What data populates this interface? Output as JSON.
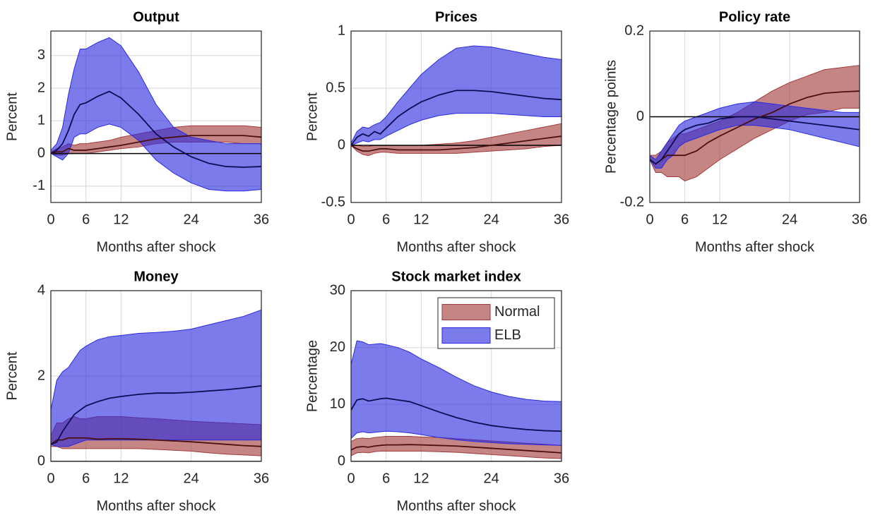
{
  "chart_data": [
    {
      "type": "line",
      "title": "Output",
      "xlabel": "Months after shock",
      "ylabel": "Percent",
      "x": [
        0,
        1,
        2,
        3,
        4,
        5,
        6,
        8,
        10,
        12,
        15,
        18,
        21,
        24,
        27,
        30,
        33,
        36
      ],
      "xlim": [
        0,
        36
      ],
      "xticks": [
        0,
        6,
        12,
        24,
        36
      ],
      "ylim": [
        -1.5,
        3.75
      ],
      "yticks": [
        -1,
        0,
        1,
        2,
        3
      ],
      "grid": true,
      "hline": 0,
      "series": [
        {
          "color": "#a33a3a",
          "line_color": "#4a1010",
          "values": [
            0,
            0.05,
            0.05,
            0.15,
            0.1,
            0.1,
            0.1,
            0.15,
            0.2,
            0.25,
            0.35,
            0.45,
            0.5,
            0.55,
            0.55,
            0.55,
            0.55,
            0.5
          ],
          "lower": [
            0,
            -0.05,
            -0.05,
            0,
            0,
            0,
            0,
            0.05,
            0.1,
            0.15,
            0.2,
            0.3,
            0.35,
            0.35,
            0.35,
            0.35,
            0.3,
            0.3
          ],
          "upper": [
            0.05,
            0.15,
            0.2,
            0.3,
            0.25,
            0.3,
            0.3,
            0.35,
            0.4,
            0.5,
            0.6,
            0.7,
            0.8,
            0.85,
            0.85,
            0.85,
            0.85,
            0.8
          ]
        },
        {
          "color": "#2a2ae0",
          "line_color": "#0d0d55",
          "values": [
            0,
            0.1,
            0.3,
            0.7,
            1.2,
            1.5,
            1.55,
            1.75,
            1.9,
            1.7,
            1.2,
            0.6,
            0.2,
            -0.1,
            -0.3,
            -0.4,
            -0.42,
            -0.4
          ],
          "lower": [
            0,
            -0.1,
            -0.2,
            0,
            0.5,
            0.6,
            0.6,
            0.8,
            0.9,
            0.8,
            0.4,
            -0.2,
            -0.6,
            -0.9,
            -1.1,
            -1.15,
            -1.15,
            -1.1
          ],
          "upper": [
            0.1,
            0.3,
            0.8,
            1.8,
            2.6,
            3.2,
            3.2,
            3.4,
            3.55,
            3.3,
            2.5,
            1.5,
            0.8,
            0.5,
            0.4,
            0.3,
            0.3,
            0.3
          ]
        }
      ]
    },
    {
      "type": "line",
      "title": "Prices",
      "xlabel": "Months after shock",
      "ylabel": "Percent",
      "x": [
        0,
        1,
        2,
        3,
        4,
        5,
        6,
        8,
        10,
        12,
        15,
        18,
        21,
        24,
        27,
        30,
        33,
        36
      ],
      "xlim": [
        0,
        36
      ],
      "xticks": [
        0,
        6,
        12,
        24,
        36
      ],
      "ylim": [
        -0.5,
        1
      ],
      "yticks": [
        -0.5,
        0,
        0.5,
        1
      ],
      "grid": true,
      "hline": 0,
      "series": [
        {
          "color": "#a33a3a",
          "line_color": "#4a1010",
          "values": [
            0,
            -0.03,
            -0.05,
            -0.05,
            -0.04,
            -0.03,
            -0.03,
            -0.04,
            -0.04,
            -0.04,
            -0.04,
            -0.03,
            -0.02,
            0,
            0.02,
            0.04,
            0.06,
            0.08
          ],
          "lower": [
            0,
            -0.05,
            -0.08,
            -0.09,
            -0.07,
            -0.06,
            -0.06,
            -0.07,
            -0.07,
            -0.07,
            -0.07,
            -0.07,
            -0.06,
            -0.05,
            -0.04,
            -0.03,
            -0.01,
            0
          ],
          "upper": [
            0.01,
            0,
            -0.01,
            -0.01,
            0,
            0,
            0,
            0,
            0,
            0,
            0.01,
            0.02,
            0.04,
            0.07,
            0.1,
            0.13,
            0.16,
            0.19
          ]
        },
        {
          "color": "#2a2ae0",
          "line_color": "#0d0d55",
          "values": [
            0,
            0.07,
            0.1,
            0.08,
            0.12,
            0.1,
            0.15,
            0.25,
            0.32,
            0.38,
            0.44,
            0.48,
            0.48,
            0.47,
            0.45,
            0.43,
            0.41,
            0.4
          ],
          "lower": [
            0,
            0.02,
            0.04,
            0.03,
            0.05,
            0.05,
            0.08,
            0.13,
            0.18,
            0.22,
            0.26,
            0.28,
            0.28,
            0.28,
            0.27,
            0.26,
            0.25,
            0.25
          ],
          "upper": [
            0.02,
            0.12,
            0.16,
            0.15,
            0.18,
            0.2,
            0.25,
            0.38,
            0.5,
            0.62,
            0.75,
            0.85,
            0.87,
            0.86,
            0.83,
            0.8,
            0.77,
            0.75
          ]
        }
      ]
    },
    {
      "type": "line",
      "title": "Policy rate",
      "xlabel": "Months after shock",
      "ylabel": "Percentage points",
      "x": [
        0,
        1,
        2,
        3,
        4,
        5,
        6,
        8,
        10,
        12,
        15,
        18,
        21,
        24,
        27,
        30,
        33,
        36
      ],
      "xlim": [
        0,
        36
      ],
      "xticks": [
        0,
        6,
        12,
        24,
        36
      ],
      "ylim": [
        -0.2,
        0.2
      ],
      "yticks": [
        -0.2,
        0,
        0.2
      ],
      "grid": true,
      "hline": 0,
      "series": [
        {
          "color": "#a33a3a",
          "line_color": "#4a1010",
          "values": [
            -0.1,
            -0.11,
            -0.1,
            -0.09,
            -0.09,
            -0.09,
            -0.09,
            -0.08,
            -0.06,
            -0.045,
            -0.025,
            -0.005,
            0.01,
            0.03,
            0.045,
            0.055,
            0.058,
            0.06
          ],
          "lower": [
            -0.1,
            -0.13,
            -0.13,
            -0.14,
            -0.14,
            -0.14,
            -0.15,
            -0.14,
            -0.12,
            -0.1,
            -0.075,
            -0.05,
            -0.03,
            -0.01,
            0.005,
            0.01,
            0.02,
            0.02
          ],
          "upper": [
            -0.09,
            -0.09,
            -0.08,
            -0.06,
            -0.05,
            -0.04,
            -0.04,
            -0.03,
            -0.02,
            -0.01,
            0.01,
            0.035,
            0.06,
            0.08,
            0.095,
            0.11,
            0.115,
            0.12
          ]
        },
        {
          "color": "#2a2ae0",
          "line_color": "#0d0d55",
          "values": [
            -0.1,
            -0.11,
            -0.1,
            -0.08,
            -0.06,
            -0.04,
            -0.03,
            -0.02,
            -0.015,
            -0.005,
            0,
            0,
            -0.005,
            -0.01,
            -0.015,
            -0.02,
            -0.025,
            -0.03
          ],
          "lower": [
            -0.1,
            -0.12,
            -0.12,
            -0.1,
            -0.09,
            -0.07,
            -0.06,
            -0.05,
            -0.04,
            -0.03,
            -0.02,
            -0.02,
            -0.025,
            -0.03,
            -0.04,
            -0.05,
            -0.06,
            -0.07
          ],
          "upper": [
            -0.09,
            -0.1,
            -0.08,
            -0.06,
            -0.04,
            -0.02,
            -0.01,
            0,
            0.01,
            0.02,
            0.03,
            0.035,
            0.03,
            0.025,
            0.02,
            0.015,
            0.01,
            0.01
          ]
        }
      ]
    },
    {
      "type": "line",
      "title": "Money",
      "xlabel": "Months after shock",
      "ylabel": "Percent",
      "x": [
        0,
        1,
        2,
        3,
        4,
        5,
        6,
        8,
        10,
        12,
        15,
        18,
        21,
        24,
        27,
        30,
        33,
        36
      ],
      "xlim": [
        0,
        36
      ],
      "xticks": [
        0,
        6,
        12,
        24,
        36
      ],
      "ylim": [
        0,
        4
      ],
      "yticks": [
        0,
        2,
        4
      ],
      "grid": true,
      "hline": 0,
      "series": [
        {
          "color": "#a33a3a",
          "line_color": "#4a1010",
          "values": [
            0.4,
            0.5,
            0.5,
            0.55,
            0.55,
            0.55,
            0.55,
            0.52,
            0.53,
            0.53,
            0.52,
            0.5,
            0.48,
            0.46,
            0.43,
            0.4,
            0.37,
            0.35
          ],
          "lower": [
            0.35,
            0.35,
            0.3,
            0.3,
            0.3,
            0.3,
            0.3,
            0.3,
            0.3,
            0.3,
            0.3,
            0.28,
            0.26,
            0.24,
            0.2,
            0.17,
            0.15,
            0.13
          ],
          "upper": [
            0.6,
            0.9,
            0.9,
            1,
            1.05,
            1,
            1,
            1.05,
            1.05,
            1.05,
            1.02,
            1,
            0.97,
            0.94,
            0.92,
            0.9,
            0.88,
            0.86
          ]
        },
        {
          "color": "#2a2ae0",
          "line_color": "#0d0d55",
          "values": [
            0.4,
            0.45,
            0.7,
            0.9,
            1.1,
            1.2,
            1.3,
            1.4,
            1.48,
            1.52,
            1.57,
            1.6,
            1.6,
            1.62,
            1.65,
            1.68,
            1.72,
            1.77
          ],
          "lower": [
            0.4,
            0.35,
            0.35,
            0.35,
            0.4,
            0.45,
            0.5,
            0.5,
            0.5,
            0.5,
            0.5,
            0.5,
            0.5,
            0.5,
            0.5,
            0.5,
            0.5,
            0.5
          ],
          "upper": [
            1.2,
            1.9,
            2.1,
            2.2,
            2.4,
            2.6,
            2.7,
            2.85,
            2.92,
            2.95,
            3,
            3.02,
            3.05,
            3.1,
            3.2,
            3.3,
            3.4,
            3.55
          ]
        }
      ]
    },
    {
      "type": "line",
      "title": "Stock market index",
      "xlabel": "Months after shock",
      "ylabel": "Percentage",
      "x": [
        0,
        1,
        2,
        3,
        4,
        5,
        6,
        8,
        10,
        12,
        15,
        18,
        21,
        24,
        27,
        30,
        33,
        36
      ],
      "xlim": [
        0,
        36
      ],
      "xticks": [
        0,
        6,
        12,
        24,
        36
      ],
      "ylim": [
        0,
        30
      ],
      "yticks": [
        0,
        10,
        20,
        30
      ],
      "grid": true,
      "hline": 0,
      "legend": "upper right",
      "series": [
        {
          "name": "Normal",
          "color": "#a33a3a",
          "line_color": "#4a1010",
          "values": [
            2,
            2.5,
            2.6,
            2.5,
            2.7,
            2.8,
            2.9,
            2.9,
            2.95,
            2.9,
            2.8,
            2.7,
            2.5,
            2.3,
            2.1,
            1.9,
            1.7,
            1.5
          ],
          "lower": [
            1,
            1.5,
            1.6,
            1.5,
            1.7,
            1.8,
            1.8,
            1.8,
            1.8,
            1.8,
            1.7,
            1.6,
            1.4,
            1.2,
            1,
            0.8,
            0.6,
            0.5
          ],
          "upper": [
            3.5,
            4,
            4.1,
            4,
            4.2,
            4.3,
            4.4,
            4.4,
            4.4,
            4.3,
            4.2,
            4,
            3.8,
            3.6,
            3.4,
            3.2,
            3,
            2.8
          ]
        },
        {
          "name": "ELB",
          "color": "#2a2ae0",
          "line_color": "#0d0d55",
          "values": [
            9,
            10.8,
            11,
            10.6,
            10.8,
            11,
            11.1,
            10.8,
            10.5,
            9.8,
            8.7,
            7.7,
            6.9,
            6.3,
            5.9,
            5.6,
            5.4,
            5.3
          ],
          "lower": [
            4,
            5,
            5.2,
            5,
            5.1,
            5.2,
            5.3,
            5.2,
            5,
            4.7,
            4.2,
            3.8,
            3.5,
            3.3,
            3.1,
            3,
            2.9,
            2.8
          ],
          "upper": [
            17,
            21.2,
            21,
            20.5,
            20.6,
            20.7,
            20.5,
            20,
            19.2,
            18,
            16.5,
            14.8,
            13.3,
            12.2,
            11.4,
            10.9,
            10.6,
            10.5
          ]
        }
      ]
    }
  ]
}
